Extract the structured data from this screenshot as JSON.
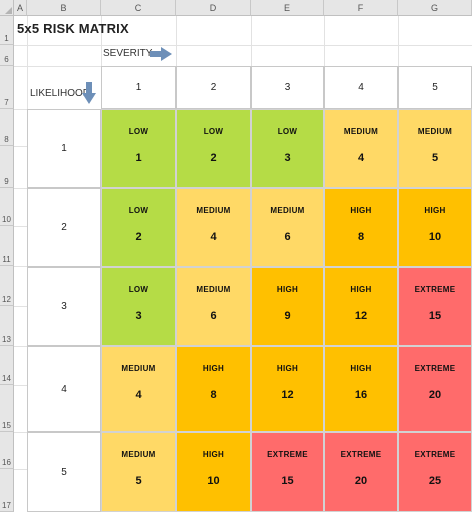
{
  "spreadsheet": {
    "column_headers": [
      "A",
      "B",
      "C",
      "D",
      "E",
      "F",
      "G"
    ],
    "row_headers": [
      "1",
      "6",
      "7",
      "8",
      "9",
      "10",
      "11",
      "12",
      "13",
      "14",
      "15",
      "16",
      "17"
    ]
  },
  "matrix": {
    "title": "5x5 RISK MATRIX",
    "severity_label": "SEVERITY",
    "likelihood_label": "LIKELIHOOD",
    "severity_values": [
      "1",
      "2",
      "3",
      "4",
      "5"
    ],
    "likelihood_values": [
      "1",
      "2",
      "3",
      "4",
      "5"
    ],
    "level_colors": {
      "LOW": "#b5dc46",
      "MEDIUM": "#ffd966",
      "HIGH": "#ffc000",
      "EXTREME": "#ff6b6b"
    },
    "rows": [
      {
        "cells": [
          {
            "level": "LOW",
            "score": "1"
          },
          {
            "level": "LOW",
            "score": "2"
          },
          {
            "level": "LOW",
            "score": "3"
          },
          {
            "level": "MEDIUM",
            "score": "4"
          },
          {
            "level": "MEDIUM",
            "score": "5"
          }
        ]
      },
      {
        "cells": [
          {
            "level": "LOW",
            "score": "2"
          },
          {
            "level": "MEDIUM",
            "score": "4"
          },
          {
            "level": "MEDIUM",
            "score": "6"
          },
          {
            "level": "HIGH",
            "score": "8"
          },
          {
            "level": "HIGH",
            "score": "10"
          }
        ]
      },
      {
        "cells": [
          {
            "level": "LOW",
            "score": "3"
          },
          {
            "level": "MEDIUM",
            "score": "6"
          },
          {
            "level": "HIGH",
            "score": "9"
          },
          {
            "level": "HIGH",
            "score": "12"
          },
          {
            "level": "EXTREME",
            "score": "15"
          }
        ]
      },
      {
        "cells": [
          {
            "level": "MEDIUM",
            "score": "4"
          },
          {
            "level": "HIGH",
            "score": "8"
          },
          {
            "level": "HIGH",
            "score": "12"
          },
          {
            "level": "HIGH",
            "score": "16"
          },
          {
            "level": "EXTREME",
            "score": "20"
          }
        ]
      },
      {
        "cells": [
          {
            "level": "MEDIUM",
            "score": "5"
          },
          {
            "level": "HIGH",
            "score": "10"
          },
          {
            "level": "EXTREME",
            "score": "15"
          },
          {
            "level": "EXTREME",
            "score": "20"
          },
          {
            "level": "EXTREME",
            "score": "25"
          }
        ]
      }
    ]
  }
}
